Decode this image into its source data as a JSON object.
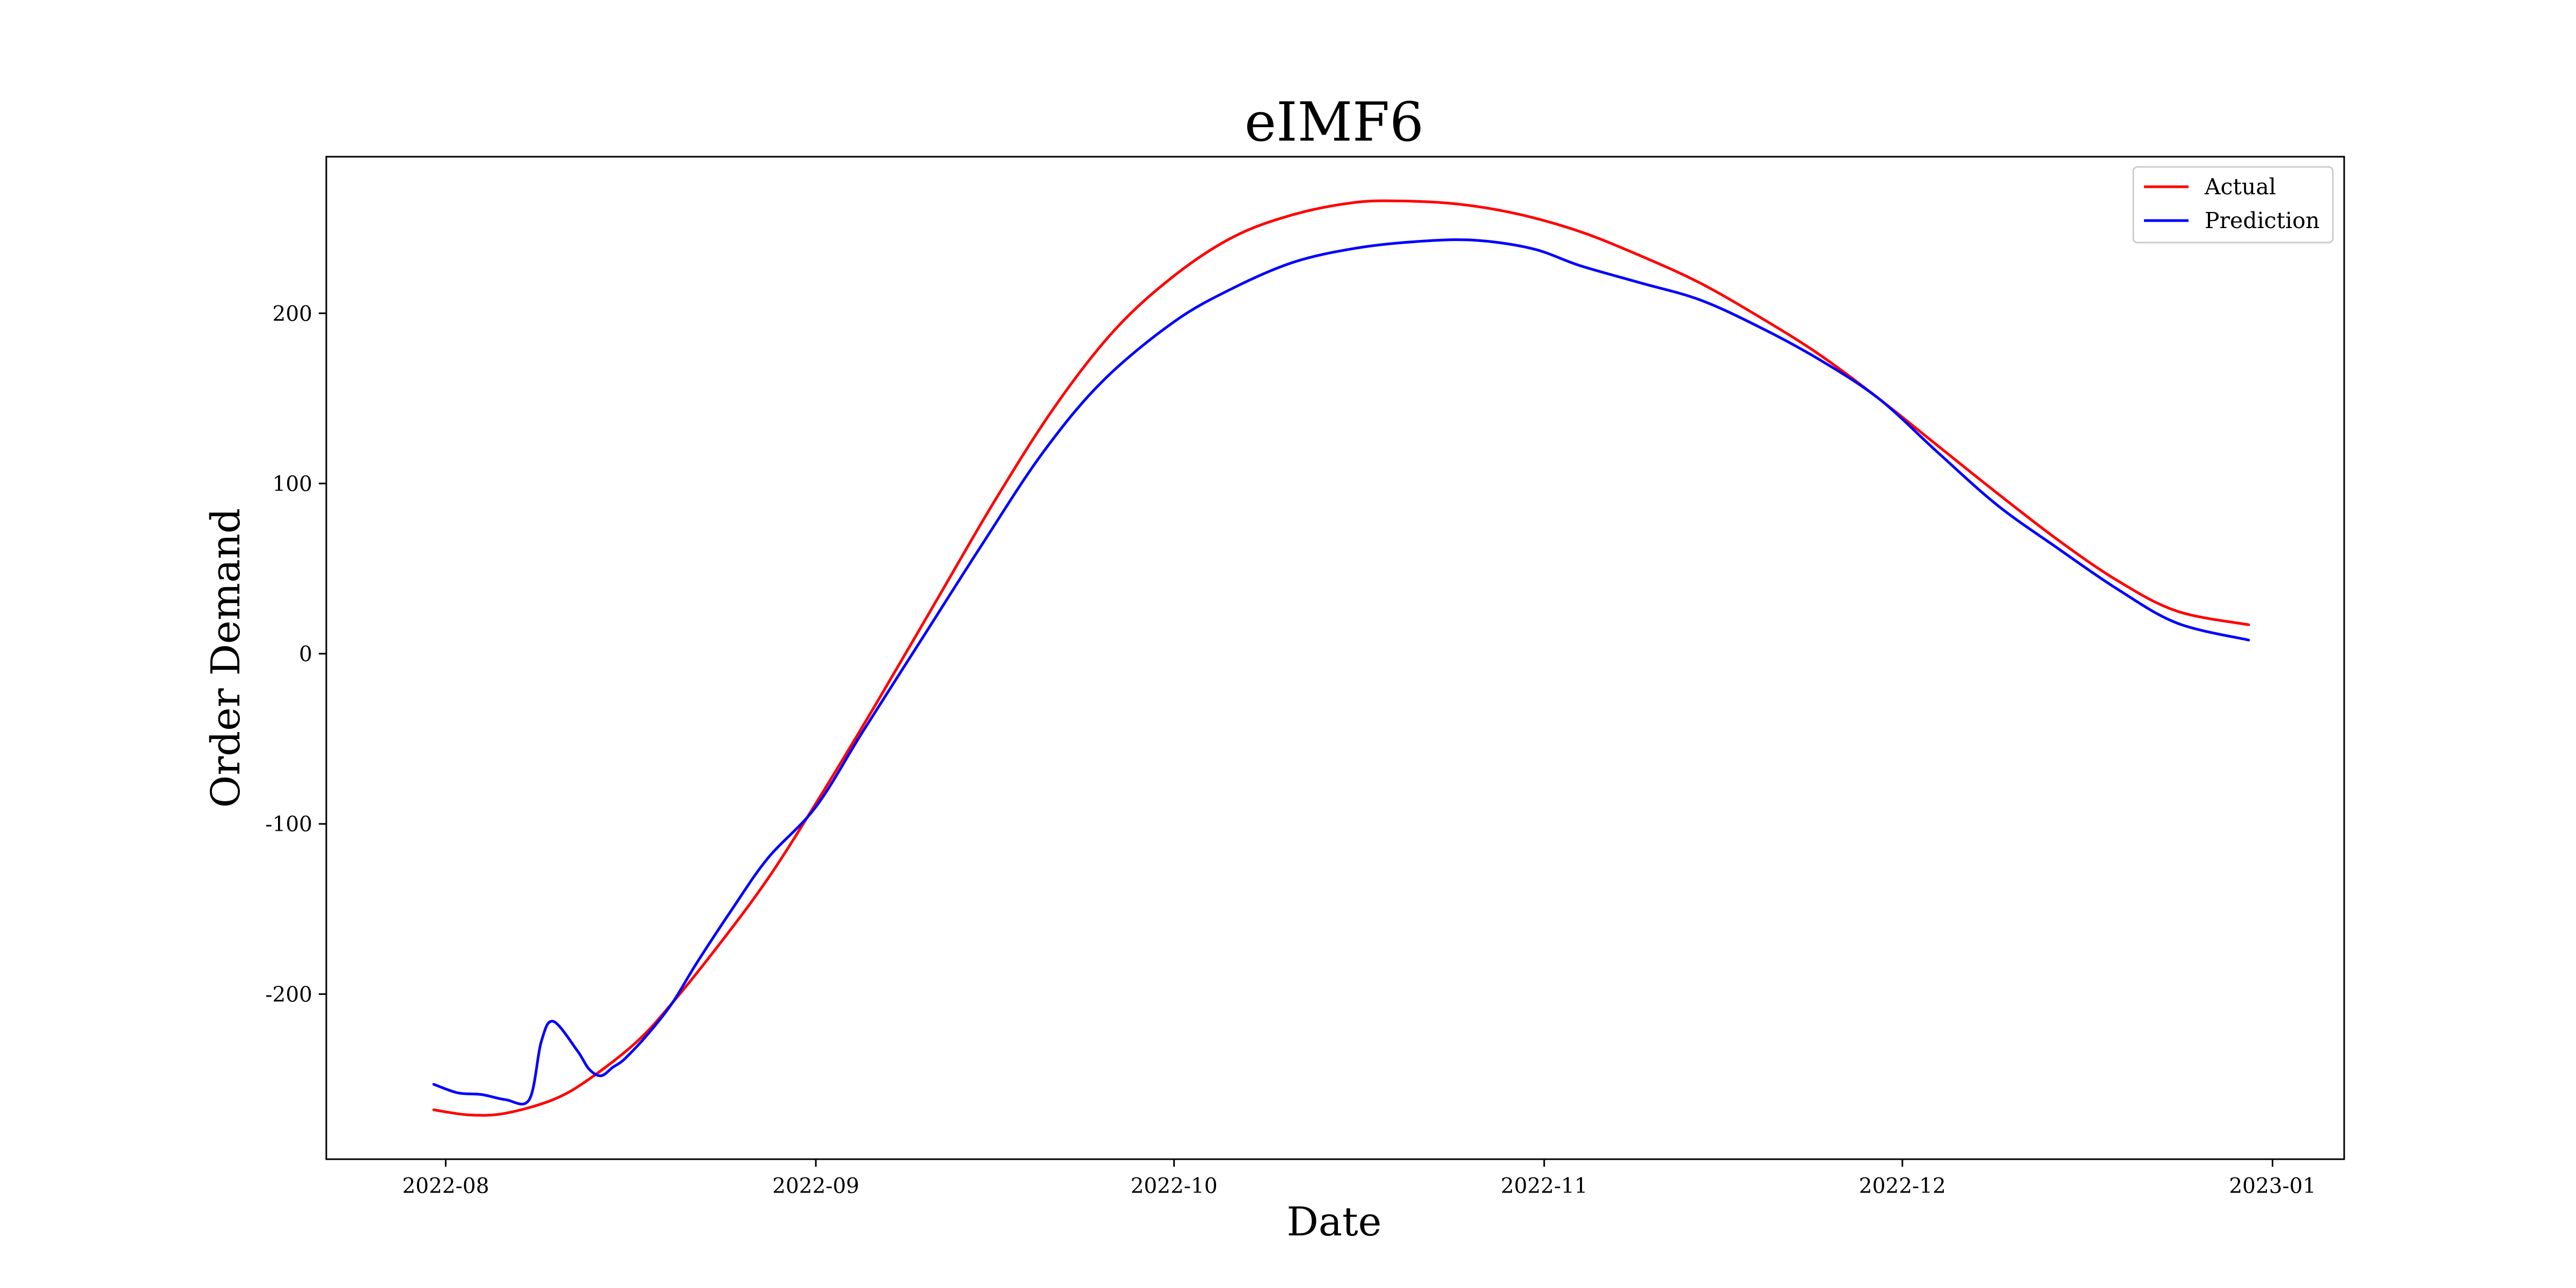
{
  "chart_data": {
    "type": "line",
    "title": "eIMF6",
    "xlabel": "Date",
    "ylabel": "Order Demand",
    "x_ticks": [
      "2022-08",
      "2022-09",
      "2022-10",
      "2022-11",
      "2022-12",
      "2023-01"
    ],
    "x_tick_dates": [
      "2022-08-01",
      "2022-09-01",
      "2022-10-01",
      "2022-11-01",
      "2022-12-01",
      "2023-01-01"
    ],
    "y_ticks": [
      -200,
      -100,
      0,
      100,
      200
    ],
    "xlim": [
      "2022-07-22",
      "2023-01-07"
    ],
    "ylim": [
      -297,
      292
    ],
    "grid": false,
    "legend": "top-right",
    "colors": {
      "Actual": "#ff0000",
      "Prediction": "#0000ff"
    },
    "series": [
      {
        "name": "Actual",
        "color": "#ff0000",
        "x": [
          "2022-07-31",
          "2022-08-03",
          "2022-08-06",
          "2022-08-10",
          "2022-08-13",
          "2022-08-17",
          "2022-08-20",
          "2022-08-24",
          "2022-08-28",
          "2022-09-01",
          "2022-09-06",
          "2022-09-11",
          "2022-09-16",
          "2022-09-21",
          "2022-09-26",
          "2022-10-01",
          "2022-10-06",
          "2022-10-11",
          "2022-10-16",
          "2022-10-20",
          "2022-10-25",
          "2022-10-30",
          "2022-11-04",
          "2022-11-09",
          "2022-11-14",
          "2022-11-19",
          "2022-11-24",
          "2022-11-29",
          "2022-12-04",
          "2022-12-09",
          "2022-12-14",
          "2022-12-19",
          "2022-12-24",
          "2022-12-30"
        ],
        "y": [
          -268,
          -271,
          -270,
          -262,
          -250,
          -228,
          -205,
          -170,
          -132,
          -88,
          -30,
          30,
          90,
          145,
          190,
          222,
          245,
          258,
          265,
          266,
          264,
          258,
          248,
          234,
          218,
          198,
          176,
          150,
          122,
          94,
          67,
          43,
          25,
          17
        ]
      },
      {
        "name": "Prediction",
        "color": "#0000ff",
        "x": [
          "2022-07-31",
          "2022-08-02",
          "2022-08-04",
          "2022-08-06",
          "2022-08-08",
          "2022-08-09",
          "2022-08-10",
          "2022-08-12",
          "2022-08-13",
          "2022-08-14",
          "2022-08-15",
          "2022-08-16",
          "2022-08-18",
          "2022-08-20",
          "2022-08-22",
          "2022-08-25",
          "2022-08-28",
          "2022-09-01",
          "2022-09-05",
          "2022-09-10",
          "2022-09-15",
          "2022-09-20",
          "2022-09-25",
          "2022-10-01",
          "2022-10-06",
          "2022-10-11",
          "2022-10-16",
          "2022-10-21",
          "2022-10-26",
          "2022-10-31",
          "2022-11-04",
          "2022-11-09",
          "2022-11-14",
          "2022-11-19",
          "2022-11-24",
          "2022-11-29",
          "2022-12-04",
          "2022-12-09",
          "2022-12-14",
          "2022-12-19",
          "2022-12-24",
          "2022-12-30"
        ],
        "y": [
          -253,
          -258,
          -259,
          -262,
          -262,
          -228,
          -216,
          -233,
          -244,
          -248,
          -243,
          -238,
          -223,
          -205,
          -182,
          -150,
          -120,
          -90,
          -45,
          10,
          65,
          118,
          160,
          195,
          215,
          230,
          238,
          242,
          243,
          238,
          228,
          218,
          208,
          192,
          173,
          150,
          118,
          87,
          62,
          38,
          18,
          8
        ]
      }
    ]
  }
}
